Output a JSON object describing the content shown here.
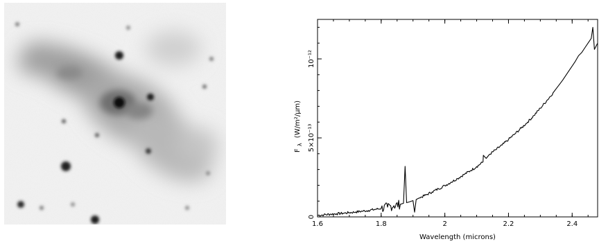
{
  "image_panel": {
    "description_icon": "galaxy-field-grayscale-image"
  },
  "chart_data": {
    "type": "line",
    "xlabel": "Wavelength  (microns)",
    "ylabel_main": "F",
    "ylabel_sub": "λ",
    "ylabel_unit": "(W/m²/μm)",
    "xlim": [
      1.6,
      2.48
    ],
    "ylim": [
      0,
      1.25e-12
    ],
    "x_ticks": [
      {
        "value": 1.6,
        "label": "1.6"
      },
      {
        "value": 1.8,
        "label": "1.8"
      },
      {
        "value": 2.0,
        "label": "2"
      },
      {
        "value": 2.2,
        "label": "2.2"
      },
      {
        "value": 2.4,
        "label": "2.4"
      }
    ],
    "y_ticks": [
      {
        "value": 0,
        "label": "0"
      },
      {
        "value": 5e-13,
        "label": "5×10⁻¹³"
      },
      {
        "value": 1e-12,
        "label": "10⁻¹²"
      }
    ],
    "series": [
      {
        "color": "#000000",
        "x": [
          1.6,
          1.62,
          1.64,
          1.66,
          1.68,
          1.7,
          1.72,
          1.74,
          1.76,
          1.78,
          1.8,
          1.82,
          1.84,
          1.86,
          1.87,
          1.875,
          1.88,
          1.89,
          1.9,
          1.905,
          1.91,
          1.92,
          1.94,
          1.96,
          1.98,
          2.0,
          2.02,
          2.04,
          2.06,
          2.08,
          2.1,
          2.12,
          2.121,
          2.13,
          2.14,
          2.16,
          2.18,
          2.2,
          2.22,
          2.24,
          2.26,
          2.28,
          2.3,
          2.32,
          2.34,
          2.35,
          2.36,
          2.37,
          2.38,
          2.39,
          2.4,
          2.41,
          2.42,
          2.43,
          2.44,
          2.45,
          2.46,
          2.465,
          2.47,
          2.48
        ],
        "y": [
          1e-14,
          1.3e-14,
          1.7e-14,
          2e-14,
          2.3e-14,
          2.7e-14,
          3.1e-14,
          3.6e-14,
          4.1e-14,
          4.7e-14,
          5.4e-14,
          6.2e-14,
          7.1e-14,
          8e-14,
          8.6e-14,
          3.2e-13,
          9e-14,
          9.6e-14,
          1.03e-13,
          3e-14,
          1.1e-13,
          1.2e-13,
          1.38e-13,
          1.58e-13,
          1.78e-13,
          1.98e-13,
          2.2e-13,
          2.43e-13,
          2.68e-13,
          2.92e-13,
          3.18e-13,
          3.48e-13,
          3.9e-13,
          3.7e-13,
          3.95e-13,
          4.25e-13,
          4.55e-13,
          4.9e-13,
          5.25e-13,
          5.62e-13,
          6e-13,
          6.42e-13,
          6.88e-13,
          7.35e-13,
          7.85e-13,
          8.12e-13,
          8.38e-13,
          8.65e-13,
          8.95e-13,
          9.25e-13,
          9.55e-13,
          9.85e-13,
          1.02e-12,
          1.04e-12,
          1.07e-12,
          1.1e-12,
          1.13e-12,
          1.2e-12,
          1.06e-12,
          1.1e-12
        ]
      }
    ]
  }
}
